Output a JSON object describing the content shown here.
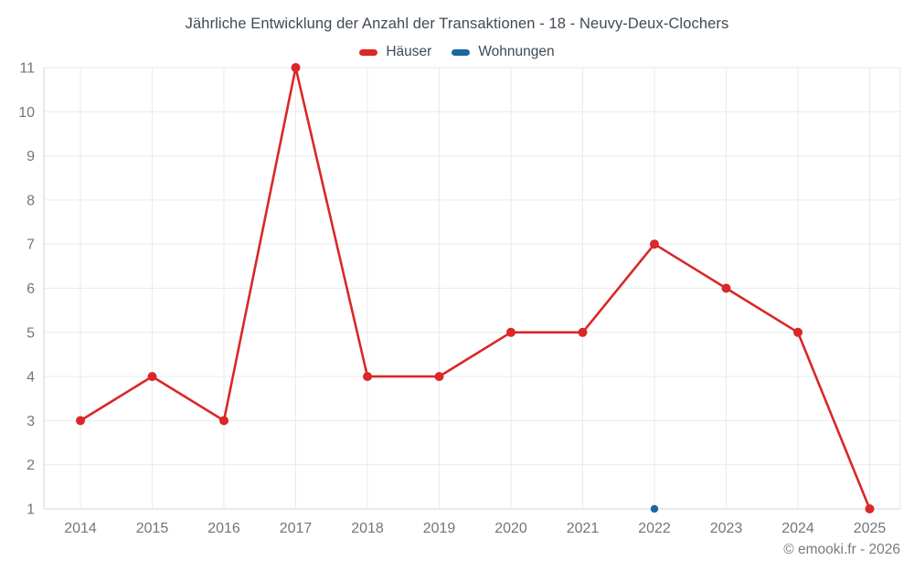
{
  "title": "Jährliche Entwicklung der Anzahl der Transaktionen - 18 - Neuvy-Deux-Clochers",
  "footer": "© emooki.fr - 2026",
  "colors": {
    "haeuser_red": "#da2727",
    "wohnungen_blue": "#1769a0",
    "title_text": "#3f4a54",
    "axis_text": "#757575",
    "grid_line": "#e9eaec",
    "axis_line": "#d2d6da",
    "background": "#ffffff"
  },
  "chart_data": {
    "type": "line",
    "title": "Jährliche Entwicklung der Anzahl der Transaktionen - 18 - Neuvy-Deux-Clochers",
    "categories": [
      "2014",
      "2015",
      "2016",
      "2017",
      "2018",
      "2019",
      "2020",
      "2021",
      "2022",
      "2023",
      "2024",
      "2025"
    ],
    "series": [
      {
        "name": "Häuser",
        "color": "#da2727",
        "point_radius": 5,
        "values": [
          3,
          4,
          3,
          11,
          4,
          4,
          5,
          5,
          7,
          6,
          5,
          1
        ]
      },
      {
        "name": "Wohnungen",
        "color": "#1769a0",
        "point_radius": 4.2,
        "values": [
          null,
          null,
          null,
          null,
          null,
          null,
          null,
          null,
          1,
          null,
          null,
          null
        ]
      }
    ],
    "xlabel": "",
    "ylabel": "",
    "ylim": [
      1,
      11
    ],
    "y_ticks": [
      1,
      2,
      3,
      4,
      5,
      6,
      7,
      8,
      9,
      10,
      11
    ],
    "grid": true,
    "legend_position": "top"
  }
}
